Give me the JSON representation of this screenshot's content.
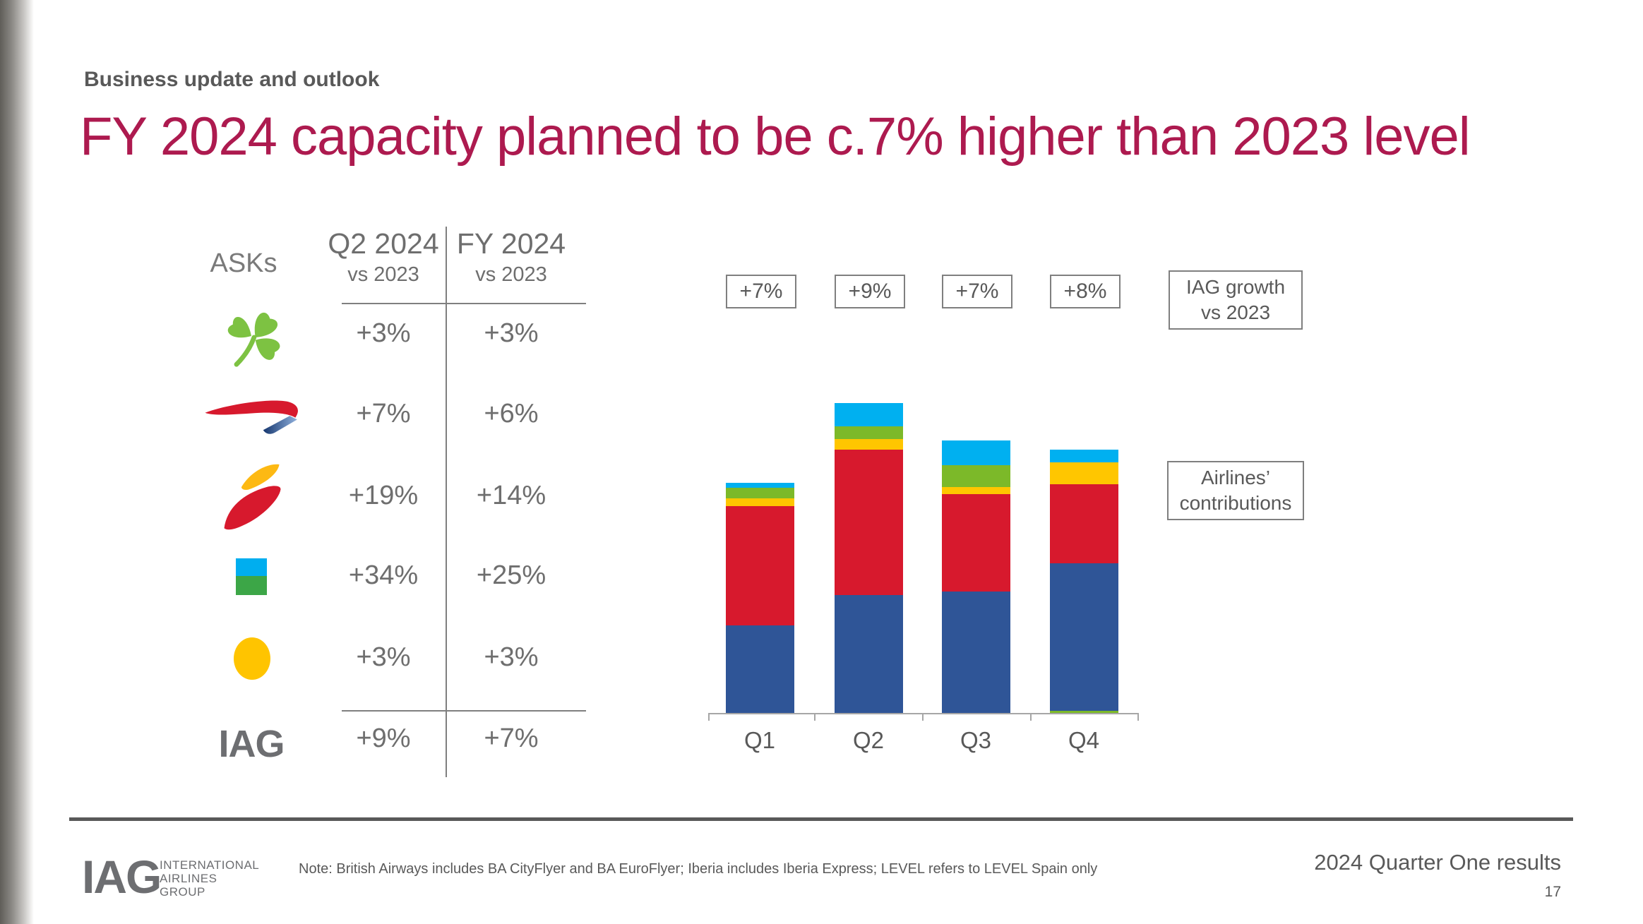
{
  "slide": {
    "eyebrow": "Business update and outlook",
    "title": "FY 2024 capacity planned to be c.7% higher than 2023 level",
    "footnote": "Note: British Airways includes BA CityFlyer and BA EuroFlyer; Iberia includes Iberia Express; LEVEL refers to LEVEL Spain only",
    "footer_right": "2024 Quarter One results",
    "page_number": "17",
    "logo": {
      "wordmark": "IAG",
      "lines": [
        "INTERNATIONAL",
        "AIRLINES",
        "GROUP"
      ]
    }
  },
  "table": {
    "row_label": "ASKs",
    "columns": [
      {
        "title": "Q2 2024",
        "subtitle": "vs 2023"
      },
      {
        "title": "FY 2024",
        "subtitle": "vs 2023"
      }
    ],
    "rows": [
      {
        "airline": "Aer Lingus",
        "icon": "aer-lingus-shamrock",
        "q2_2024": "+3%",
        "fy_2024": "+3%"
      },
      {
        "airline": "British Airways",
        "icon": "ba-speedbird",
        "q2_2024": "+7%",
        "fy_2024": "+6%"
      },
      {
        "airline": "Iberia",
        "icon": "iberia-swoosh",
        "q2_2024": "+19%",
        "fy_2024": "+14%"
      },
      {
        "airline": "LEVEL",
        "icon": "level-mark",
        "q2_2024": "+34%",
        "fy_2024": "+25%"
      },
      {
        "airline": "Vueling",
        "icon": "vueling-dot",
        "q2_2024": "+3%",
        "fy_2024": "+3%"
      },
      {
        "airline": "IAG",
        "icon": "iag-wordmark",
        "q2_2024": "+9%",
        "fy_2024": "+7%"
      }
    ]
  },
  "chart_data": {
    "type": "bar",
    "stacked": true,
    "title": "Quarterly capacity by airline with IAG growth vs 2023",
    "categories": [
      "Q1",
      "Q2",
      "Q3",
      "Q4"
    ],
    "unit": "relative ASK capacity (estimated from bar heights)",
    "series": [
      {
        "name": "British Airways",
        "color_key": "ba",
        "values": [
          124,
          167,
          172,
          209
        ]
      },
      {
        "name": "Iberia",
        "color_key": "iberia",
        "values": [
          169,
          206,
          138,
          112
        ]
      },
      {
        "name": "Vueling",
        "color_key": "vueling",
        "values": [
          11,
          15,
          10,
          31
        ]
      },
      {
        "name": "Aer Lingus",
        "color_key": "aer_lingus",
        "values": [
          15,
          18,
          31,
          3
        ]
      },
      {
        "name": "LEVEL",
        "color_key": "level",
        "values": [
          7,
          33,
          35,
          18
        ]
      }
    ],
    "growth_labels": [
      "+7%",
      "+9%",
      "+7%",
      "+8%"
    ],
    "legend_position": "right-boxes",
    "grid": false,
    "stacks": [
      [
        [
          "ba",
          124
        ],
        [
          "iberia",
          169
        ],
        [
          "vueling",
          11
        ],
        [
          "aer_lingus",
          15
        ],
        [
          "level",
          7
        ]
      ],
      [
        [
          "ba",
          167
        ],
        [
          "iberia",
          206
        ],
        [
          "vueling",
          15
        ],
        [
          "aer_lingus",
          18
        ],
        [
          "level",
          33
        ]
      ],
      [
        [
          "ba",
          172
        ],
        [
          "iberia",
          138
        ],
        [
          "vueling",
          10
        ],
        [
          "aer_lingus",
          31
        ],
        [
          "level",
          35
        ]
      ],
      [
        [
          "aer_lingus",
          3
        ],
        [
          "ba",
          209
        ],
        [
          "iberia",
          112
        ],
        [
          "vueling",
          31
        ],
        [
          "level",
          18
        ]
      ]
    ]
  },
  "annotations": {
    "growth_box": {
      "line1": "IAG growth",
      "line2": "vs 2023"
    },
    "contrib_box": {
      "line1": "Airlines’",
      "line2": "contributions"
    }
  },
  "colors": {
    "title_crimson": "#AD1A4F",
    "text_gray": "#595959",
    "table_gray": "#6e6e6e",
    "line_gray": "#7f7f7f",
    "axis_gray": "#a6a6a6",
    "iag_logo_gray": "#6D6E71",
    "airlines": {
      "ba": "#2F5597",
      "iberia": "#D7192D",
      "vueling": "#FFC600",
      "aer_lingus": "#7CB929",
      "level": "#00B0F0"
    },
    "logo_marks": {
      "shamrock_green": "#7DC242",
      "ba_red": "#D7192D",
      "ba_blue_dark": "#16376F",
      "ba_blue_light": "#8FB0DC",
      "iberia_yellow": "#FDB913",
      "iberia_red": "#D7192D",
      "level_cyan": "#00AEEF",
      "level_green": "#3CA647",
      "vueling_yellow": "#FFC400"
    }
  }
}
